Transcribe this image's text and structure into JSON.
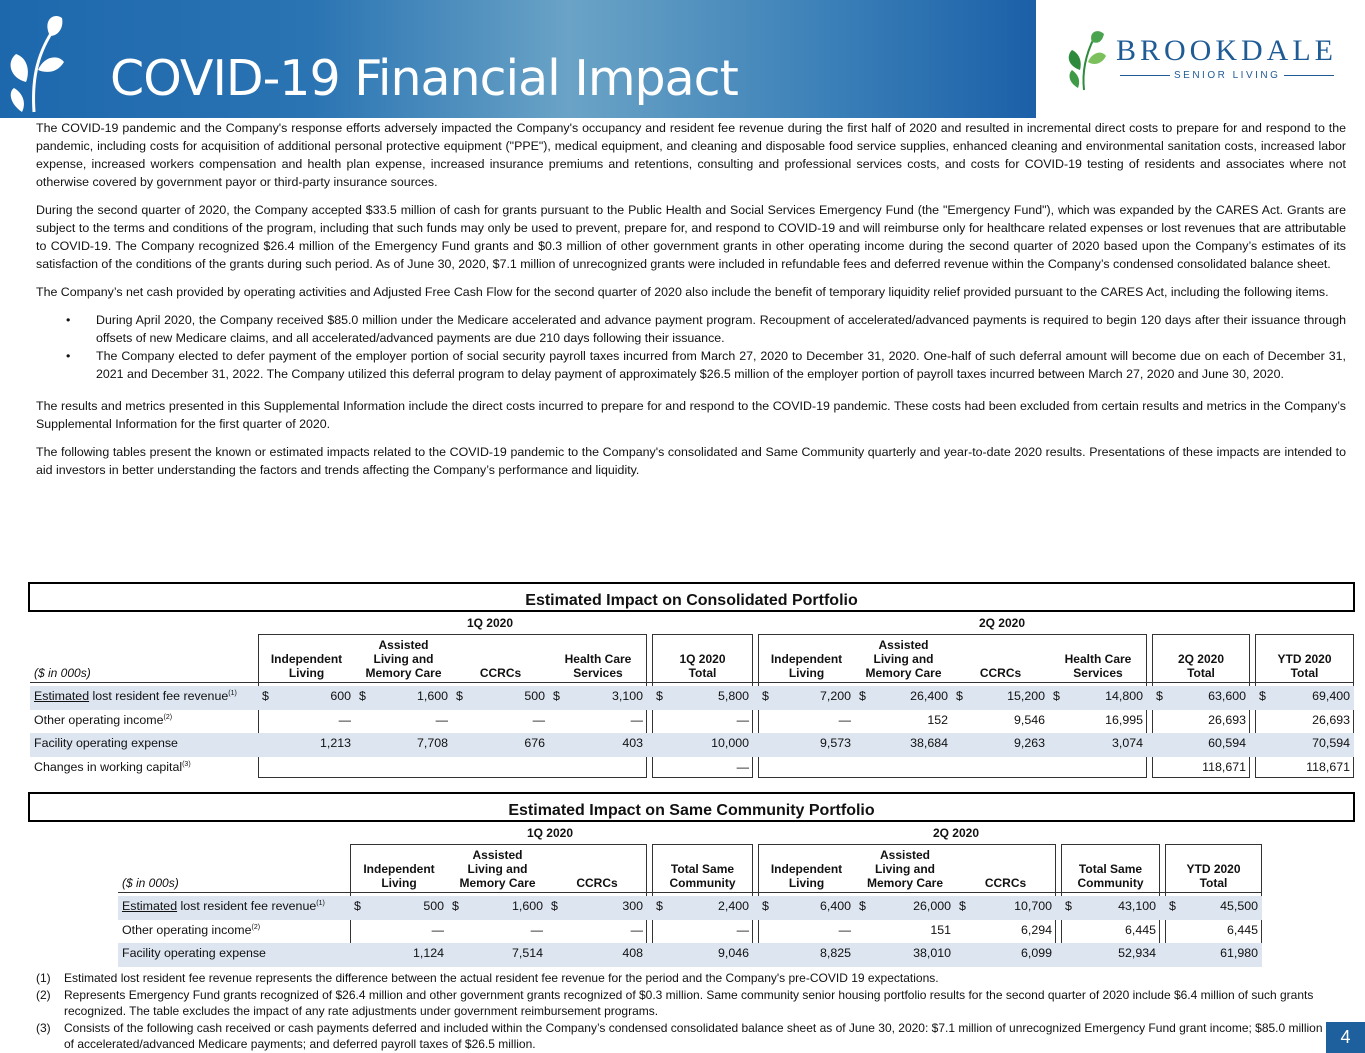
{
  "header": {
    "title": "COVID-19 Financial Impact",
    "logo_name": "BROOKDALE",
    "logo_tagline": "SENIOR LIVING",
    "brand_color": "#1f5c96"
  },
  "body": {
    "p1": "The COVID-19 pandemic and the Company's response efforts adversely impacted the Company's occupancy and resident fee revenue during the first half of 2020 and resulted in incremental direct costs to prepare for and respond to the pandemic, including costs for acquisition of additional personal protective equipment (\"PPE\"), medical equipment, and cleaning and disposable food service supplies, enhanced cleaning and environmental sanitation costs, increased labor expense, increased workers compensation and health plan expense, increased insurance premiums and retentions, consulting and professional services costs, and costs for COVID-19 testing of residents and associates where not otherwise covered by government payor or third-party insurance sources.",
    "p2": "During the second quarter of 2020, the Company accepted $33.5 million of cash for grants pursuant to the Public Health and Social Services Emergency Fund (the \"Emergency Fund\"), which was expanded by the CARES Act. Grants are subject to the terms and conditions of the program, including that such funds may only be used to prevent, prepare for, and respond to COVID-19 and will reimburse only for healthcare related expenses or lost revenues that are attributable to COVID-19. The Company recognized $26.4 million of the Emergency Fund grants and $0.3 million of other government grants in other operating income during the second quarter of 2020 based upon the Company’s estimates of its satisfaction of the conditions of the grants during such period. As of June 30, 2020, $7.1 million of unrecognized grants were included in refundable fees and deferred revenue within the Company’s condensed consolidated balance sheet.",
    "p3": "The Company’s net cash provided by operating activities and Adjusted Free Cash Flow for the second quarter of 2020 also include the benefit of temporary liquidity relief provided pursuant to the CARES Act, including the following items.",
    "bullet": "•",
    "b1": "During April 2020, the Company received $85.0 million under the Medicare accelerated and advance payment program. Recoupment of accelerated/advanced payments is required to begin 120 days after their issuance through offsets of new Medicare claims, and all accelerated/advanced payments are due 210 days following their issuance.",
    "b2": "The Company elected to defer payment of the employer portion of social security payroll taxes incurred from March 27, 2020 to December 31, 2020. One-half of such deferral amount will become due on each of December 31, 2021 and December 31, 2022. The Company utilized this deferral program to delay payment of approximately $26.5 million of the employer portion of payroll taxes incurred between March 27, 2020 and June 30, 2020.",
    "p4": "The results and metrics presented in this Supplemental Information include the direct costs incurred to prepare for and respond to the COVID-19 pandemic. These costs had been excluded from certain results and metrics in the Company’s Supplemental Information for the first quarter of 2020.",
    "p5": "The following tables present the known or estimated impacts related to the COVID-19 pandemic to the Company's consolidated and Same Community quarterly and year-to-date 2020 results. Presentations of these impacts are intended to aid investors in better understanding the factors and trends affecting the Company’s performance and liquidity."
  },
  "table1": {
    "title": "Estimated Impact on Consolidated Portfolio",
    "period_1q": "1Q 2020",
    "period_2q": "2Q 2020",
    "units": "($ in 000s)",
    "columns": [
      [
        "Independent",
        "Living"
      ],
      [
        "Assisted",
        "Living and",
        "Memory Care"
      ],
      [
        "CCRCs"
      ],
      [
        "Health Care",
        "Services"
      ],
      [
        "1Q 2020",
        "Total"
      ],
      [
        "Independent",
        "Living"
      ],
      [
        "Assisted",
        "Living and",
        "Memory Care"
      ],
      [
        "CCRCs"
      ],
      [
        "Health Care",
        "Services"
      ],
      [
        "2Q 2020",
        "Total"
      ],
      [
        "YTD 2020",
        "Total"
      ]
    ],
    "rows": [
      {
        "label_u": "Estimated",
        "label": " lost resident fee revenue",
        "note": "(1)",
        "values": [
          "600",
          "1,600",
          "500",
          "3,100",
          "5,800",
          "7,200",
          "26,400",
          "15,200",
          "14,800",
          "63,600",
          "69,400"
        ]
      },
      {
        "label_u": "",
        "label": "Other operating income",
        "note": "(2)",
        "values": [
          "—",
          "—",
          "—",
          "—",
          "—",
          "—",
          "152",
          "9,546",
          "16,995",
          "26,693",
          "26,693"
        ]
      },
      {
        "label_u": "",
        "label": "Facility operating expense",
        "note": "",
        "values": [
          "1,213",
          "7,708",
          "676",
          "403",
          "10,000",
          "9,573",
          "38,684",
          "9,263",
          "3,074",
          "60,594",
          "70,594"
        ]
      },
      {
        "label_u": "",
        "label": "Changes in working capital",
        "note": "(3)",
        "values": [
          "",
          "",
          "",
          "",
          "—",
          "",
          "",
          "",
          "",
          "118,671",
          "118,671"
        ]
      }
    ],
    "dollar": "$"
  },
  "table2": {
    "title": "Estimated Impact on Same Community Portfolio",
    "period_1q": "1Q 2020",
    "period_2q": "2Q 2020",
    "units": "($ in 000s)",
    "columns": [
      [
        "Independent",
        "Living"
      ],
      [
        "Assisted",
        "Living and",
        "Memory Care"
      ],
      [
        "CCRCs"
      ],
      [
        "Total Same",
        "Community"
      ],
      [
        "Independent",
        "Living"
      ],
      [
        "Assisted",
        "Living and",
        "Memory Care"
      ],
      [
        "CCRCs"
      ],
      [
        "Total Same",
        "Community"
      ],
      [
        "YTD 2020",
        "Total"
      ]
    ],
    "rows": [
      {
        "label_u": "Estimated",
        "label": " lost resident fee revenue",
        "note": "(1)",
        "values": [
          "500",
          "1,600",
          "300",
          "2,400",
          "6,400",
          "26,000",
          "10,700",
          "43,100",
          "45,500"
        ]
      },
      {
        "label_u": "",
        "label": "Other operating income",
        "note": "(2)",
        "values": [
          "—",
          "—",
          "—",
          "—",
          "—",
          "151",
          "6,294",
          "6,445",
          "6,445"
        ]
      },
      {
        "label_u": "",
        "label": "Facility operating expense",
        "note": "",
        "values": [
          "1,124",
          "7,514",
          "408",
          "9,046",
          "8,825",
          "38,010",
          "6,099",
          "52,934",
          "61,980"
        ]
      }
    ],
    "dollar": "$"
  },
  "footnotes": [
    {
      "n": "(1)",
      "text": "Estimated lost resident fee revenue represents the difference between the actual resident fee revenue for the period and the Company's pre-COVID 19 expectations."
    },
    {
      "n": "(2)",
      "text": "Represents Emergency Fund grants recognized of $26.4 million and other government grants recognized of $0.3 million. Same community senior housing portfolio results for the second quarter of 2020 include $6.4 million of such grants recognized. The table excludes the impact of any rate adjustments under government reimbursement programs."
    },
    {
      "n": "(3)",
      "text": "Consists of the following cash received or cash payments deferred and included within the Company’s condensed consolidated balance sheet as of June 30, 2020: $7.1 million of unrecognized Emergency Fund grant income; $85.0 million of accelerated/advanced Medicare payments; and deferred payroll taxes of $26.5 million."
    }
  ],
  "page_number": "4"
}
